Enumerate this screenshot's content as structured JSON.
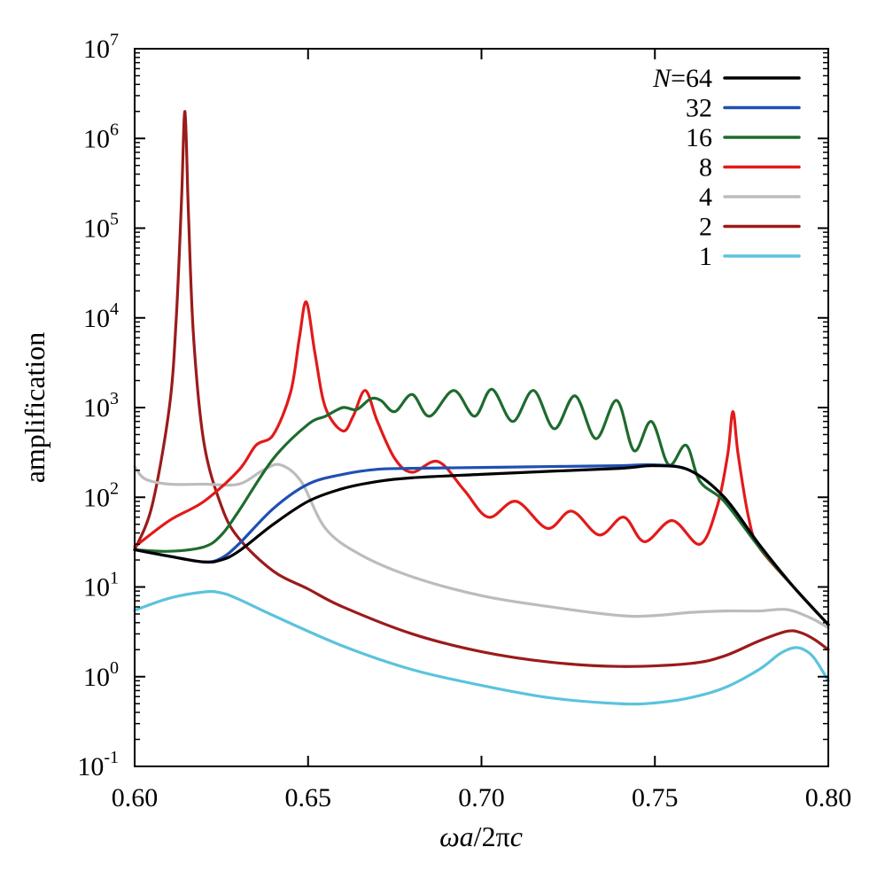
{
  "chart_data": {
    "type": "line",
    "title": "",
    "xlabel": {
      "omega_a": "ωa",
      "slash": "/2π",
      "c": "c"
    },
    "ylabel": "amplification",
    "xlim": [
      0.6,
      0.8
    ],
    "ylim": [
      0.1,
      10000000
    ],
    "yscale": "log",
    "grid": false,
    "legend_placement": "top-right",
    "x_ticks": [
      "0.60",
      "0.65",
      "0.70",
      "0.75",
      "0.80"
    ],
    "x_tick_values": [
      0.6,
      0.65,
      0.7,
      0.75,
      0.8
    ],
    "y_ticks": [
      {
        "value": 0.1,
        "base": "10",
        "exp": "-1"
      },
      {
        "value": 1,
        "base": "10",
        "exp": "0"
      },
      {
        "value": 10,
        "base": "10",
        "exp": "1"
      },
      {
        "value": 100,
        "base": "10",
        "exp": "2"
      },
      {
        "value": 1000,
        "base": "10",
        "exp": "3"
      },
      {
        "value": 10000,
        "base": "10",
        "exp": "4"
      },
      {
        "value": 100000,
        "base": "10",
        "exp": "5"
      },
      {
        "value": 1000000,
        "base": "10",
        "exp": "6"
      },
      {
        "value": 10000000,
        "base": "10",
        "exp": "7"
      }
    ],
    "legend_prefix": "N",
    "legend_eq": "=64",
    "series": [
      {
        "name": "64",
        "color": "#000000",
        "x": [
          0.6,
          0.61,
          0.62,
          0.625,
          0.63,
          0.64,
          0.65,
          0.66,
          0.67,
          0.68,
          0.7,
          0.72,
          0.74,
          0.75,
          0.76,
          0.77,
          0.78,
          0.79,
          0.8
        ],
        "y": [
          26,
          22,
          19,
          20,
          25,
          50,
          90,
          125,
          150,
          165,
          180,
          195,
          210,
          225,
          200,
          100,
          30,
          10,
          3.8
        ]
      },
      {
        "name": "32",
        "color": "#1f4fb4",
        "x": [
          0.6,
          0.61,
          0.62,
          0.625,
          0.63,
          0.64,
          0.65,
          0.66,
          0.67,
          0.68,
          0.7,
          0.72,
          0.74,
          0.75,
          0.76,
          0.77,
          0.78,
          0.79,
          0.8
        ],
        "y": [
          26,
          22,
          19,
          21,
          30,
          75,
          140,
          180,
          205,
          210,
          215,
          220,
          225,
          230,
          200,
          100,
          30,
          10,
          3.8
        ]
      },
      {
        "name": "16",
        "color": "#1e6b2e",
        "x": [
          0.6,
          0.61,
          0.62,
          0.625,
          0.63,
          0.64,
          0.65,
          0.655,
          0.66,
          0.664,
          0.668,
          0.671,
          0.675,
          0.68,
          0.685,
          0.692,
          0.698,
          0.703,
          0.709,
          0.715,
          0.721,
          0.727,
          0.733,
          0.739,
          0.744,
          0.749,
          0.754,
          0.759,
          0.763,
          0.77,
          0.78,
          0.79,
          0.8
        ],
        "y": [
          26,
          25,
          28,
          38,
          70,
          270,
          650,
          800,
          1000,
          950,
          1250,
          1200,
          900,
          1400,
          800,
          1550,
          800,
          1600,
          700,
          1550,
          580,
          1350,
          450,
          1200,
          330,
          700,
          230,
          380,
          150,
          90,
          28,
          10,
          3.8
        ]
      },
      {
        "name": "8",
        "color": "#e21a1a",
        "x": [
          0.6,
          0.61,
          0.62,
          0.63,
          0.635,
          0.64,
          0.645,
          0.6475,
          0.6495,
          0.652,
          0.655,
          0.66,
          0.663,
          0.6665,
          0.67,
          0.675,
          0.68,
          0.6875,
          0.695,
          0.702,
          0.71,
          0.719,
          0.726,
          0.734,
          0.741,
          0.747,
          0.755,
          0.763,
          0.768,
          0.771,
          0.7725,
          0.774,
          0.777,
          0.78,
          0.79,
          0.8
        ],
        "y": [
          28,
          55,
          90,
          200,
          380,
          500,
          1500,
          6000,
          15000,
          4000,
          1000,
          550,
          800,
          1550,
          700,
          270,
          190,
          250,
          120,
          60,
          90,
          45,
          70,
          38,
          60,
          32,
          55,
          30,
          80,
          300,
          900,
          300,
          60,
          28,
          10,
          3.8
        ]
      },
      {
        "name": "4",
        "color": "#bcbcbc",
        "x": [
          0.6,
          0.603,
          0.61,
          0.62,
          0.63,
          0.637,
          0.642,
          0.648,
          0.655,
          0.665,
          0.68,
          0.7,
          0.72,
          0.74,
          0.75,
          0.76,
          0.77,
          0.78,
          0.788,
          0.795,
          0.8
        ],
        "y": [
          220,
          160,
          140,
          140,
          140,
          200,
          230,
          150,
          45,
          23,
          13,
          8,
          6,
          4.8,
          4.8,
          5.2,
          5.4,
          5.4,
          5.6,
          4.5,
          3.5
        ]
      },
      {
        "name": "2",
        "color": "#9b1b1b",
        "x": [
          0.6,
          0.605,
          0.61,
          0.612,
          0.6135,
          0.6145,
          0.6155,
          0.617,
          0.62,
          0.625,
          0.63,
          0.64,
          0.65,
          0.66,
          0.68,
          0.7,
          0.72,
          0.74,
          0.76,
          0.77,
          0.78,
          0.788,
          0.792,
          0.796,
          0.8
        ],
        "y": [
          26,
          80,
          1000,
          10000,
          200000,
          2000000,
          150000,
          6000,
          400,
          80,
          35,
          15,
          9.5,
          6,
          3,
          1.9,
          1.45,
          1.3,
          1.4,
          1.7,
          2.5,
          3.2,
          3.1,
          2.6,
          2.0
        ]
      },
      {
        "name": "1",
        "color": "#5bc3dd",
        "x": [
          0.6,
          0.61,
          0.62,
          0.625,
          0.63,
          0.64,
          0.66,
          0.68,
          0.7,
          0.72,
          0.74,
          0.75,
          0.76,
          0.77,
          0.78,
          0.786,
          0.79,
          0.793,
          0.796,
          0.8
        ],
        "y": [
          5.5,
          7.5,
          8.8,
          8.6,
          7.3,
          4.8,
          2.2,
          1.2,
          0.8,
          0.58,
          0.5,
          0.51,
          0.58,
          0.75,
          1.2,
          1.8,
          2.1,
          2.0,
          1.6,
          0.9
        ]
      }
    ]
  }
}
